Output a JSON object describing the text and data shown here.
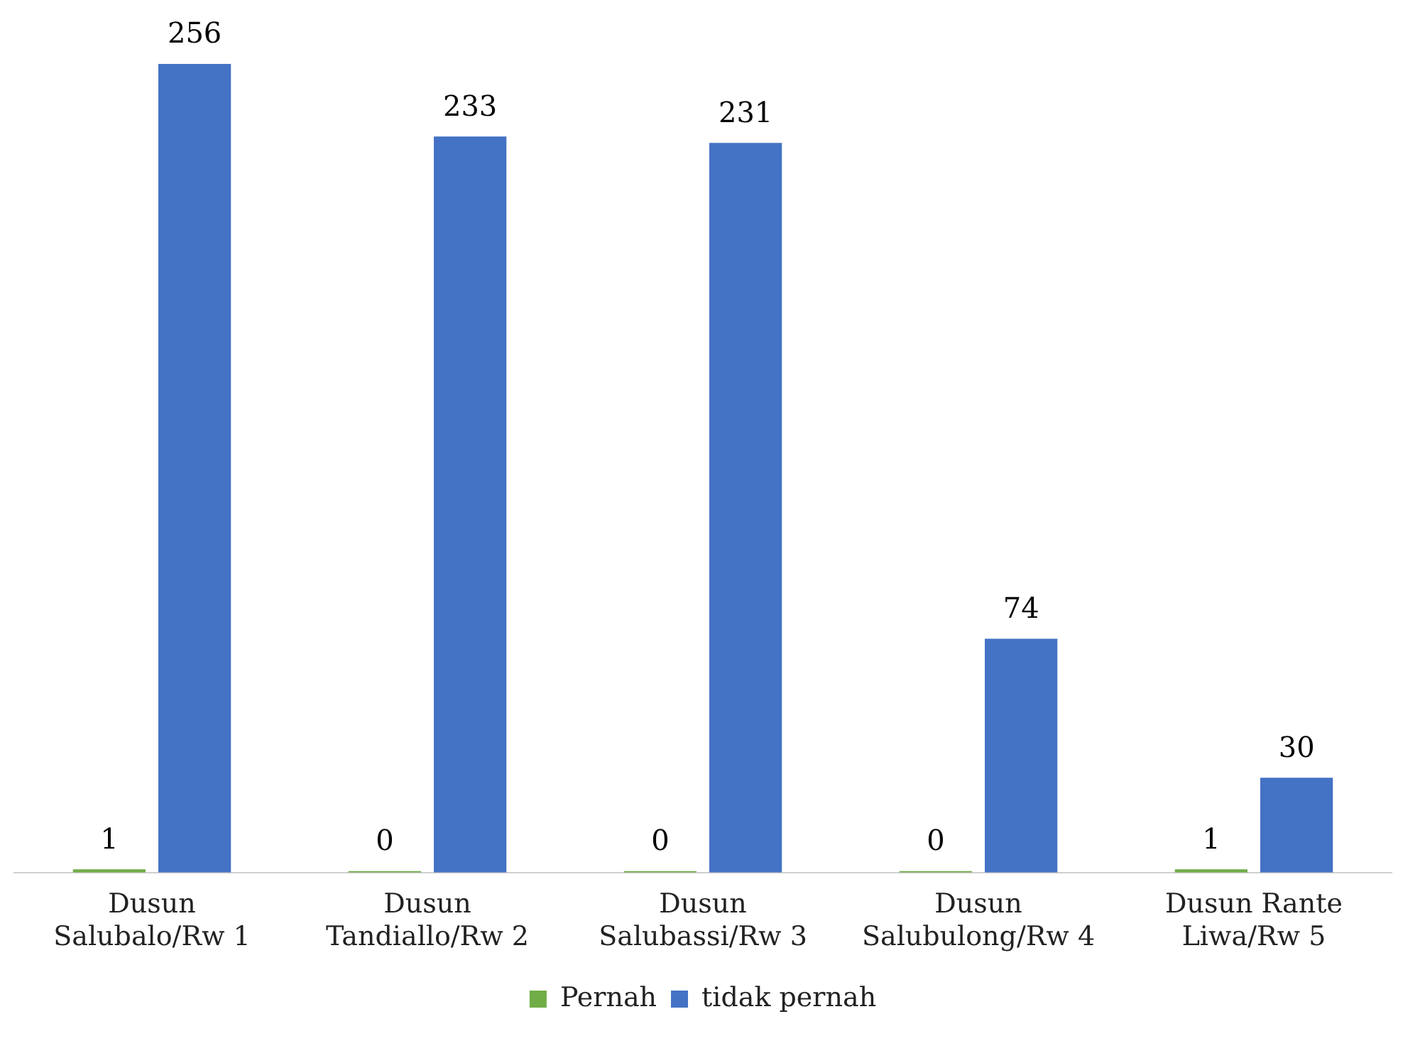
{
  "chart_data": {
    "type": "bar",
    "categories": [
      "Dusun Salubalo/Rw 1",
      "Dusun Tandiallo/Rw 2",
      "Dusun Salubassi/Rw 3",
      "Dusun Salubulong/Rw 4",
      "Dusun Rante Liwa/Rw 5"
    ],
    "series": [
      {
        "name": "Pernah",
        "color": "#70ad47",
        "values": [
          1,
          0,
          0,
          0,
          1
        ]
      },
      {
        "name": "tidak pernah",
        "color": "#4472c4",
        "values": [
          256,
          233,
          231,
          74,
          30
        ]
      }
    ],
    "data_labels": true,
    "legend": "bottom",
    "grid": false
  }
}
